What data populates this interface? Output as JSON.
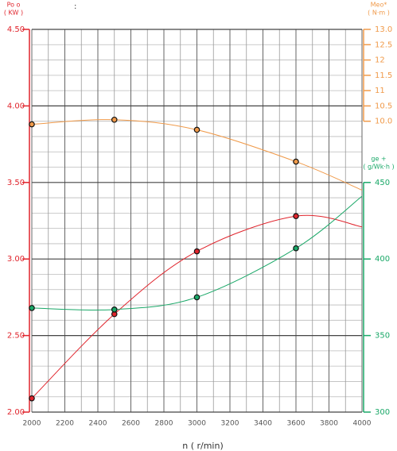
{
  "chart_data": {
    "type": "line",
    "colon": ":",
    "xlabel": "n ( r/min)",
    "x": [
      2000,
      2500,
      3000,
      3600,
      4000
    ],
    "markers": [
      true,
      true,
      true,
      true,
      false
    ],
    "xlim": [
      2000,
      4000
    ],
    "xticks": [
      2000,
      2200,
      2400,
      2600,
      2800,
      3000,
      3200,
      3400,
      3600,
      3800,
      4000
    ],
    "xminorticks": [
      2100,
      2300,
      2500,
      2700,
      2900,
      3100,
      3300,
      3500,
      3700,
      3900
    ],
    "ylim": [
      2.0,
      4.5
    ],
    "yticks": [
      {
        "value": 2.0,
        "label": "2.00"
      },
      {
        "value": 2.5,
        "label": "2.50"
      },
      {
        "value": 3.0,
        "label": "3.00"
      },
      {
        "value": 3.5,
        "label": "3.50"
      },
      {
        "value": 4.0,
        "label": "4.00"
      },
      {
        "value": 4.5,
        "label": "4.50"
      }
    ],
    "yminorticks": [
      2.1,
      2.2,
      2.3,
      2.4,
      2.6,
      2.7,
      2.8,
      2.9,
      3.1,
      3.2,
      3.3,
      3.4,
      3.6,
      3.7,
      3.8,
      3.9,
      4.1,
      4.2,
      4.3,
      4.4
    ],
    "y2lim": [
      0.5,
      13.0
    ],
    "y2ticks": [
      {
        "value": 10,
        "label": "10.0"
      },
      10.5,
      11,
      11.5,
      12,
      12.5,
      {
        "value": 13,
        "label": "13.0"
      }
    ],
    "y3lim": [
      300,
      550
    ],
    "y3ticks": [
      300,
      350,
      400,
      450
    ],
    "grid": true,
    "series": [
      {
        "name": "Po o",
        "unit": "( KW )",
        "color": "#e0242c",
        "axis": "y",
        "values": [
          2.09,
          2.64,
          3.05,
          3.28,
          3.21
        ]
      },
      {
        "name": "Meo*",
        "unit": "( N·m )",
        "color": "#f09a4a",
        "axis": "y2",
        "values": [
          9.9,
          10.05,
          9.72,
          8.68,
          7.75
        ]
      },
      {
        "name": "ge +",
        "unit": "( g/Wk·h )",
        "color": "#1aa868",
        "axis": "y3",
        "values": [
          368,
          367,
          375,
          407,
          441
        ]
      }
    ]
  }
}
